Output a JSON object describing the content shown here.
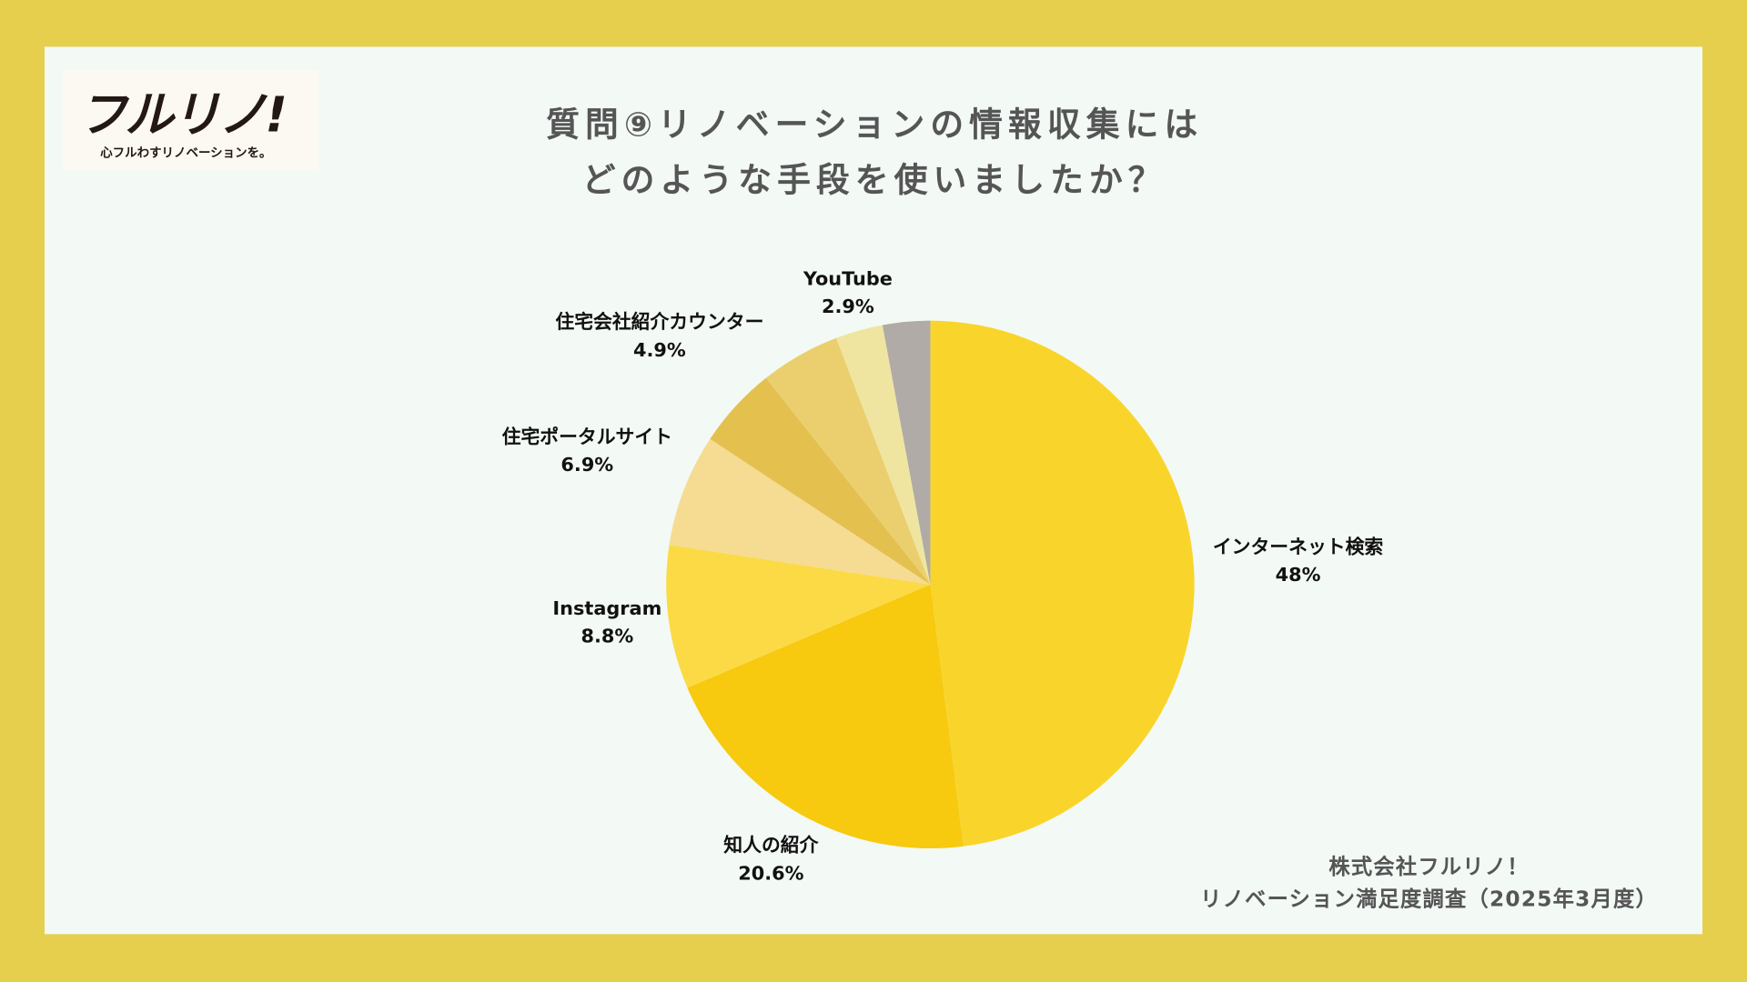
{
  "logo": {
    "mark": "フルリノ!",
    "tagline": "心フルわすリノベーションを。"
  },
  "credit": {
    "line1": "株式会社フルリノ！",
    "line2": "リノベーション満足度調査（2025年3月度）"
  },
  "chart_data": {
    "type": "pie",
    "title_line1": "質問⑨リノベーションの情報収集には",
    "title_line2": "どのような手段を使いましたか？",
    "start": "top",
    "direction": "clockwise",
    "slices": [
      {
        "label": "インターネット検索",
        "value_label": "48%",
        "value": 48,
        "color": "#F9D52B"
      },
      {
        "label": "知人の紹介",
        "value_label": "20.6%",
        "value": 20.6,
        "color": "#F7C90F"
      },
      {
        "label": "Instagram",
        "value_label": "8.8%",
        "value": 8.8,
        "color": "#FBDA45"
      },
      {
        "label": "住宅ポータルサイト",
        "value_label": "6.9%",
        "value": 6.9,
        "color": "#F5DC92"
      },
      {
        "label": null,
        "value_label": null,
        "value": 5.0,
        "color": "#E4C04F"
      },
      {
        "label": "住宅会社紹介カウンター",
        "value_label": "4.9%",
        "value": 4.9,
        "color": "#EBCF6E"
      },
      {
        "label": "YouTube",
        "value_label": "2.9%",
        "value": 2.9,
        "color": "#EFE5A0"
      },
      {
        "label": null,
        "value_label": null,
        "value": 2.9,
        "color": "#B0ABA6"
      }
    ]
  }
}
